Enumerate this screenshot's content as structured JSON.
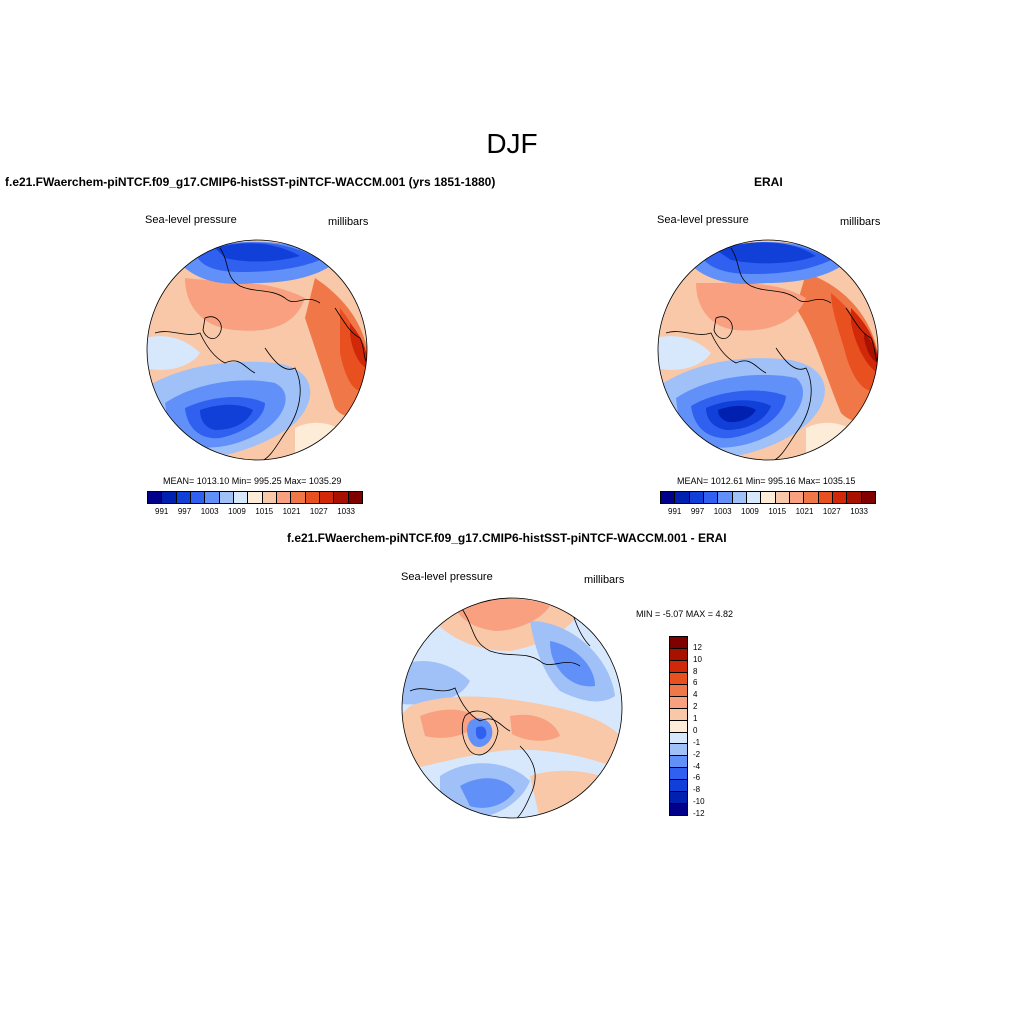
{
  "figure": {
    "season": "DJF",
    "top_left": {
      "title": "f.e21.FWaerchem-piNTCF.f09_g17.CMIP6-histSST-piNTCF-WACCM.001 (yrs 1851-1880)",
      "variable": "Sea-level pressure",
      "units": "millibars",
      "stats": "MEAN= 1013.10   Min= 995.25   Max= 1035.29"
    },
    "top_right": {
      "title": "ERAI",
      "variable": "Sea-level pressure",
      "units": "millibars",
      "stats": "MEAN= 1012.61   Min= 995.16   Max= 1035.15"
    },
    "bottom": {
      "title": "f.e21.FWaerchem-piNTCF.f09_g17.CMIP6-histSST-piNTCF-WACCM.001 - ERAI",
      "variable": "Sea-level pressure",
      "units": "millibars",
      "stats": "MIN =  -5.07 MAX =   4.82"
    }
  },
  "colorbar_abs": {
    "labels": [
      "991",
      "997",
      "1003",
      "1009",
      "1015",
      "1021",
      "1027",
      "1033"
    ],
    "colors": [
      "#00008b",
      "#0020b0",
      "#1040d8",
      "#3060f0",
      "#6090f8",
      "#a0c0f8",
      "#d8e8fc",
      "#fcecd8",
      "#f8c8a8",
      "#f8a080",
      "#f07848",
      "#e85020",
      "#d02808",
      "#a81000",
      "#800000"
    ]
  },
  "colorbar_diff": {
    "labels": [
      "12",
      "10",
      "8",
      "6",
      "4",
      "2",
      "1",
      "0",
      "-1",
      "-2",
      "-4",
      "-6",
      "-8",
      "-10",
      "-12"
    ],
    "colors": [
      "#800000",
      "#a81000",
      "#d02808",
      "#e85020",
      "#f07848",
      "#f8a080",
      "#f8c8a8",
      "#fcecd8",
      "#d8e8fc",
      "#a0c0f8",
      "#6090f8",
      "#3060f0",
      "#1040d8",
      "#0020b0",
      "#00008b"
    ]
  }
}
